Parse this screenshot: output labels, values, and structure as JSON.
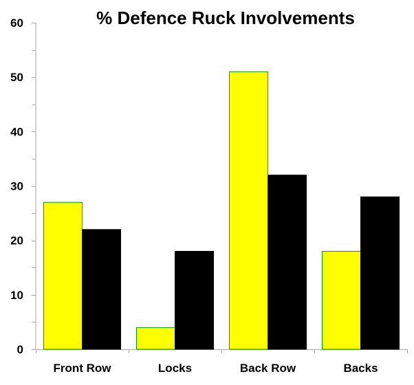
{
  "chart_data": {
    "type": "bar",
    "title": "% Defence Ruck Involvements",
    "xlabel": "",
    "ylabel": "",
    "categories": [
      "Front Row",
      "Locks",
      "Back Row",
      "Backs"
    ],
    "series": [
      {
        "color": "#ffff00",
        "stroke": "#00a000",
        "values": [
          27,
          4,
          51,
          18
        ]
      },
      {
        "color": "#000000",
        "stroke": "#000000",
        "values": [
          22,
          18,
          32,
          28
        ]
      }
    ],
    "ylim": [
      0,
      60
    ],
    "yticks": [
      "0",
      "10",
      "20",
      "30",
      "40",
      "50",
      "60"
    ],
    "grid": false,
    "legend": "none",
    "axis_color": "#a6a6a6"
  }
}
